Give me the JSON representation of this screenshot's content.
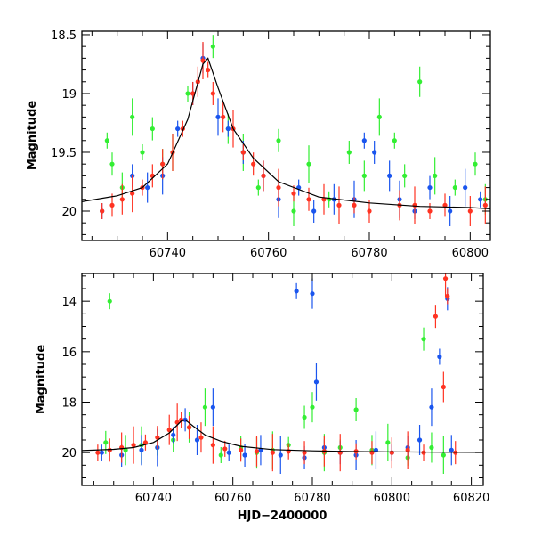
{
  "colors": {
    "green": "#33ee33",
    "blue": "#1a55ee",
    "red": "#ff3322",
    "model": "#000000"
  },
  "chart_data": [
    {
      "type": "scatter",
      "panel": "top",
      "xlim": [
        60723,
        60804
      ],
      "ylim": [
        20.25,
        18.47
      ],
      "y_inverted": true,
      "xlabel": "",
      "ylabel": "Magnitude",
      "xticks": [
        60740,
        60760,
        60780,
        60800
      ],
      "xtick_labels": [
        "60740",
        "60760",
        "60780",
        "60800"
      ],
      "yticks": [
        18.5,
        19,
        19.5,
        20
      ],
      "ytick_labels": [
        "18.5",
        "19",
        "19.5",
        "20"
      ],
      "series": [
        {
          "color": "green",
          "points": [
            [
              60728,
              19.4
            ],
            [
              60729,
              19.6
            ],
            [
              60731,
              19.8
            ],
            [
              60733,
              19.2
            ],
            [
              60735,
              19.5
            ],
            [
              60737,
              19.3
            ],
            [
              60739,
              19.6
            ],
            [
              60741,
              19.5
            ],
            [
              60744,
              19.0
            ],
            [
              60749,
              18.6
            ],
            [
              60752,
              19.3
            ],
            [
              60755,
              19.5
            ],
            [
              60758,
              19.8
            ],
            [
              60762,
              19.4
            ],
            [
              60765,
              20.0
            ],
            [
              60768,
              19.6
            ],
            [
              60772,
              19.9
            ],
            [
              60776,
              19.5
            ],
            [
              60779,
              19.7
            ],
            [
              60782,
              19.2
            ],
            [
              60785,
              19.4
            ],
            [
              60787,
              19.7
            ],
            [
              60790,
              18.9
            ],
            [
              60793,
              19.7
            ],
            [
              60797,
              19.8
            ],
            [
              60801,
              19.6
            ],
            [
              60803,
              19.9
            ]
          ]
        },
        {
          "color": "blue",
          "points": [
            [
              60727,
              20.0
            ],
            [
              60733,
              19.7
            ],
            [
              60736,
              19.8
            ],
            [
              60739,
              19.7
            ],
            [
              60742,
              19.3
            ],
            [
              60745,
              19.0
            ],
            [
              60747,
              18.7
            ],
            [
              60750,
              19.2
            ],
            [
              60752,
              19.3
            ],
            [
              60755,
              19.5
            ],
            [
              60759,
              19.7
            ],
            [
              60762,
              19.9
            ],
            [
              60766,
              19.8
            ],
            [
              60769,
              20.0
            ],
            [
              60773,
              19.9
            ],
            [
              60777,
              19.9
            ],
            [
              60779,
              19.4
            ],
            [
              60781,
              19.5
            ],
            [
              60784,
              19.7
            ],
            [
              60786,
              19.9
            ],
            [
              60789,
              20.0
            ],
            [
              60792,
              19.8
            ],
            [
              60796,
              20.0
            ],
            [
              60799,
              19.8
            ],
            [
              60802,
              19.9
            ]
          ]
        },
        {
          "color": "red",
          "points": [
            [
              60727,
              20.0
            ],
            [
              60729,
              19.95
            ],
            [
              60731,
              19.9
            ],
            [
              60733,
              19.85
            ],
            [
              60735,
              19.8
            ],
            [
              60737,
              19.7
            ],
            [
              60739,
              19.6
            ],
            [
              60741,
              19.5
            ],
            [
              60743,
              19.3
            ],
            [
              60745,
              19.0
            ],
            [
              60746,
              18.9
            ],
            [
              60747,
              18.72
            ],
            [
              60748,
              18.8
            ],
            [
              60749,
              19.0
            ],
            [
              60751,
              19.2
            ],
            [
              60753,
              19.3
            ],
            [
              60755,
              19.5
            ],
            [
              60757,
              19.6
            ],
            [
              60759,
              19.7
            ],
            [
              60762,
              19.8
            ],
            [
              60765,
              19.85
            ],
            [
              60768,
              19.9
            ],
            [
              60771,
              19.9
            ],
            [
              60774,
              19.95
            ],
            [
              60777,
              19.95
            ],
            [
              60780,
              20.0
            ],
            [
              60786,
              19.95
            ],
            [
              60789,
              19.95
            ],
            [
              60792,
              20.0
            ],
            [
              60795,
              19.95
            ],
            [
              60800,
              20.0
            ],
            [
              60803,
              19.95
            ]
          ]
        }
      ],
      "model_line": {
        "x": [
          60723,
          60730,
          60735,
          60740,
          60744,
          60747,
          60748,
          60750,
          60753,
          60757,
          60762,
          60770,
          60780,
          60790,
          60800,
          60804
        ],
        "y": [
          19.92,
          19.87,
          19.8,
          19.6,
          19.22,
          18.75,
          18.7,
          18.95,
          19.3,
          19.55,
          19.75,
          19.88,
          19.93,
          19.96,
          19.97,
          19.98
        ]
      }
    },
    {
      "type": "scatter",
      "panel": "bottom",
      "xlim": [
        60722,
        60823
      ],
      "ylim": [
        21.3,
        12.9
      ],
      "y_inverted": true,
      "xlabel": "HJD−2400000",
      "ylabel": "Magnitude",
      "xticks": [
        60740,
        60760,
        60780,
        60800,
        60820
      ],
      "xtick_labels": [
        "60740",
        "60760",
        "60780",
        "60800",
        "60820"
      ],
      "yticks": [
        14,
        16,
        18,
        20
      ],
      "ytick_labels": [
        "14",
        "16",
        "18",
        "20"
      ],
      "series": [
        {
          "color": "green",
          "points": [
            [
              60729,
              14.0
            ],
            [
              60728,
              19.6
            ],
            [
              60733,
              19.9
            ],
            [
              60737,
              19.7
            ],
            [
              60741,
              19.8
            ],
            [
              60745,
              19.5
            ],
            [
              60749,
              19.0
            ],
            [
              60753,
              18.2
            ],
            [
              60757,
              20.1
            ],
            [
              60762,
              19.8
            ],
            [
              60766,
              20.0
            ],
            [
              60770,
              19.9
            ],
            [
              60774,
              19.7
            ],
            [
              60778,
              18.6
            ],
            [
              60780,
              18.2
            ],
            [
              60783,
              20.0
            ],
            [
              60787,
              19.8
            ],
            [
              60791,
              18.3
            ],
            [
              60795,
              19.9
            ],
            [
              60799,
              19.6
            ],
            [
              60804,
              20.2
            ],
            [
              60808,
              15.5
            ],
            [
              60810,
              19.8
            ],
            [
              60813,
              20.1
            ]
          ]
        },
        {
          "color": "blue",
          "points": [
            [
              60727,
              20.0
            ],
            [
              60732,
              20.1
            ],
            [
              60737,
              19.9
            ],
            [
              60741,
              19.8
            ],
            [
              60745,
              19.3
            ],
            [
              60748,
              18.7
            ],
            [
              60751,
              19.5
            ],
            [
              60755,
              18.2
            ],
            [
              60759,
              20.0
            ],
            [
              60763,
              20.1
            ],
            [
              60767,
              19.9
            ],
            [
              60772,
              20.1
            ],
            [
              60776,
              13.6
            ],
            [
              60778,
              20.2
            ],
            [
              60780,
              13.7
            ],
            [
              60781,
              17.2
            ],
            [
              60783,
              19.8
            ],
            [
              60787,
              20.0
            ],
            [
              60791,
              20.1
            ],
            [
              60796,
              19.9
            ],
            [
              60800,
              20.0
            ],
            [
              60804,
              19.8
            ],
            [
              60807,
              19.5
            ],
            [
              60810,
              18.2
            ],
            [
              60812,
              16.2
            ],
            [
              60814,
              13.9
            ],
            [
              60815,
              19.9
            ]
          ]
        },
        {
          "color": "red",
          "points": [
            [
              60726,
              20.0
            ],
            [
              60729,
              19.9
            ],
            [
              60732,
              19.8
            ],
            [
              60735,
              19.7
            ],
            [
              60738,
              19.6
            ],
            [
              60741,
              19.4
            ],
            [
              60744,
              19.1
            ],
            [
              60746,
              18.8
            ],
            [
              60747,
              18.7
            ],
            [
              60749,
              19.0
            ],
            [
              60752,
              19.4
            ],
            [
              60755,
              19.7
            ],
            [
              60758,
              19.85
            ],
            [
              60762,
              19.9
            ],
            [
              60766,
              19.95
            ],
            [
              60770,
              20.0
            ],
            [
              60774,
              19.95
            ],
            [
              60778,
              20.0
            ],
            [
              60783,
              19.95
            ],
            [
              60787,
              20.0
            ],
            [
              60791,
              19.95
            ],
            [
              60795,
              20.0
            ],
            [
              60800,
              20.0
            ],
            [
              60804,
              19.9
            ],
            [
              60808,
              20.0
            ],
            [
              60811,
              14.6
            ],
            [
              60813,
              17.4
            ],
            [
              60813.5,
              13.1
            ],
            [
              60814,
              13.8
            ],
            [
              60816,
              20.0
            ]
          ]
        }
      ],
      "model_line": {
        "x": [
          60722,
          60730,
          60735,
          60740,
          60744,
          60747,
          60748,
          60750,
          60753,
          60757,
          60762,
          60770,
          60780,
          60790,
          60800,
          60810,
          60823
        ],
        "y": [
          19.92,
          19.87,
          19.8,
          19.6,
          19.22,
          18.75,
          18.7,
          18.95,
          19.3,
          19.55,
          19.75,
          19.88,
          19.93,
          19.96,
          19.97,
          19.98,
          19.99
        ]
      }
    }
  ]
}
